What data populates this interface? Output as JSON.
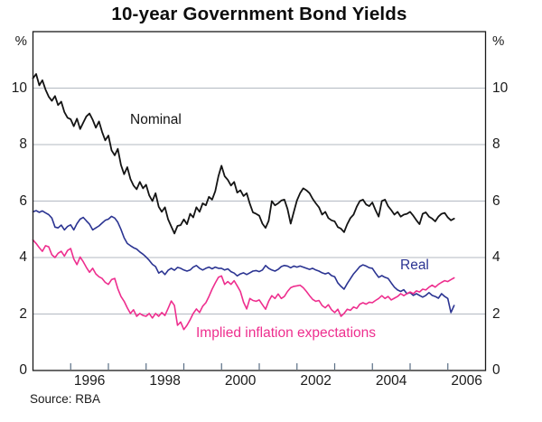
{
  "title": "10-year Government Bond Yields",
  "source_note": "Source: RBA",
  "axes": {
    "unit": "%",
    "y_ticks": [
      0,
      2,
      4,
      6,
      8,
      10
    ],
    "y_gridlines": [
      2,
      4,
      6,
      8,
      10
    ],
    "y_max": 12,
    "x_tick_years": [
      1996,
      1997,
      1998,
      1999,
      2000,
      2001,
      2002,
      2003,
      2004,
      2005,
      2006
    ],
    "x_labels": [
      1996,
      1998,
      2000,
      2002,
      2004,
      2006
    ],
    "x_min": 1995,
    "x_max": 2007,
    "grid_color": "#b3b9c2",
    "axis_color": "#1a1a1a",
    "tick_color": "#5a6f85"
  },
  "chart_data": {
    "type": "line",
    "title": "10-year Government Bond Yields",
    "xlabel": "",
    "ylabel": "%",
    "ylim": [
      0,
      12
    ],
    "xlim": [
      1995,
      2007
    ],
    "grid": true,
    "legend_position": "inline-annotations",
    "x_start": 1995.0,
    "x_step": 0.0833333,
    "series": [
      {
        "name": "Nominal",
        "color": "#141414",
        "width": 1.8,
        "values": [
          10.35,
          10.5,
          10.1,
          10.28,
          9.95,
          9.7,
          9.55,
          9.72,
          9.4,
          9.52,
          9.15,
          8.95,
          8.9,
          8.65,
          8.92,
          8.55,
          8.78,
          9.0,
          9.1,
          8.88,
          8.6,
          8.82,
          8.45,
          8.15,
          8.32,
          7.8,
          7.62,
          7.85,
          7.28,
          6.95,
          7.2,
          6.78,
          6.55,
          6.42,
          6.68,
          6.45,
          6.58,
          6.2,
          6.0,
          6.28,
          5.8,
          5.62,
          5.78,
          5.35,
          5.1,
          4.85,
          5.12,
          5.15,
          5.35,
          5.18,
          5.55,
          5.42,
          5.78,
          5.62,
          5.92,
          5.85,
          6.15,
          6.05,
          6.35,
          6.88,
          7.25,
          6.88,
          6.75,
          6.55,
          6.68,
          6.3,
          6.38,
          6.18,
          6.28,
          5.9,
          5.6,
          5.55,
          5.48,
          5.2,
          5.05,
          5.3,
          6.0,
          5.85,
          5.92,
          6.02,
          6.05,
          5.72,
          5.2,
          5.62,
          6.02,
          6.28,
          6.45,
          6.38,
          6.28,
          6.08,
          5.92,
          5.78,
          5.52,
          5.62,
          5.4,
          5.32,
          5.28,
          5.08,
          5.02,
          4.9,
          5.18,
          5.4,
          5.52,
          5.8,
          6.0,
          6.05,
          5.88,
          5.82,
          5.95,
          5.68,
          5.45,
          6.0,
          6.05,
          5.82,
          5.68,
          5.52,
          5.62,
          5.45,
          5.52,
          5.55,
          5.62,
          5.48,
          5.32,
          5.18,
          5.55,
          5.6,
          5.45,
          5.38,
          5.28,
          5.45,
          5.55,
          5.58,
          5.42,
          5.32,
          5.38
        ]
      },
      {
        "name": "Real",
        "color": "#2b3492",
        "width": 1.6,
        "values": [
          5.62,
          5.66,
          5.6,
          5.65,
          5.58,
          5.52,
          5.4,
          5.08,
          5.05,
          5.15,
          4.98,
          5.1,
          5.16,
          4.98,
          5.2,
          5.36,
          5.42,
          5.3,
          5.18,
          4.98,
          5.05,
          5.12,
          5.22,
          5.32,
          5.36,
          5.46,
          5.4,
          5.25,
          5.0,
          4.7,
          4.5,
          4.42,
          4.35,
          4.3,
          4.2,
          4.12,
          4.02,
          3.9,
          3.76,
          3.68,
          3.45,
          3.52,
          3.4,
          3.55,
          3.62,
          3.55,
          3.65,
          3.62,
          3.56,
          3.52,
          3.56,
          3.66,
          3.72,
          3.62,
          3.56,
          3.62,
          3.66,
          3.6,
          3.66,
          3.62,
          3.62,
          3.56,
          3.6,
          3.5,
          3.45,
          3.35,
          3.42,
          3.46,
          3.4,
          3.46,
          3.52,
          3.54,
          3.5,
          3.56,
          3.72,
          3.62,
          3.56,
          3.52,
          3.58,
          3.68,
          3.72,
          3.7,
          3.64,
          3.7,
          3.66,
          3.7,
          3.66,
          3.62,
          3.58,
          3.62,
          3.56,
          3.52,
          3.46,
          3.42,
          3.46,
          3.36,
          3.32,
          3.1,
          2.98,
          2.88,
          3.08,
          3.25,
          3.42,
          3.55,
          3.68,
          3.74,
          3.7,
          3.64,
          3.62,
          3.45,
          3.3,
          3.36,
          3.3,
          3.26,
          3.1,
          2.95,
          2.85,
          2.8,
          2.86,
          2.72,
          2.76,
          2.66,
          2.72,
          2.66,
          2.6,
          2.66,
          2.76,
          2.66,
          2.62,
          2.56,
          2.72,
          2.62,
          2.55,
          2.05,
          2.3
        ]
      },
      {
        "name": "Implied inflation expectations",
        "color": "#ee2e8e",
        "width": 1.6,
        "values": [
          4.62,
          4.5,
          4.35,
          4.22,
          4.42,
          4.38,
          4.1,
          4.0,
          4.15,
          4.22,
          4.05,
          4.25,
          4.32,
          3.95,
          3.75,
          4.02,
          3.85,
          3.65,
          3.48,
          3.62,
          3.42,
          3.32,
          3.26,
          3.12,
          3.05,
          3.22,
          3.26,
          2.9,
          2.62,
          2.45,
          2.22,
          2.02,
          2.15,
          1.92,
          2.02,
          1.95,
          1.92,
          2.02,
          1.86,
          2.02,
          1.92,
          2.05,
          1.95,
          2.2,
          2.46,
          2.3,
          1.6,
          1.72,
          1.45,
          1.6,
          1.8,
          2.02,
          2.18,
          2.05,
          2.28,
          2.4,
          2.62,
          2.88,
          3.1,
          3.3,
          3.35,
          3.05,
          3.15,
          3.05,
          3.18,
          3.0,
          2.8,
          2.42,
          2.18,
          2.55,
          2.48,
          2.45,
          2.5,
          2.33,
          2.17,
          2.45,
          2.65,
          2.55,
          2.71,
          2.55,
          2.62,
          2.8,
          2.93,
          2.98,
          3.0,
          3.02,
          2.93,
          2.8,
          2.65,
          2.52,
          2.45,
          2.48,
          2.3,
          2.22,
          2.33,
          2.15,
          2.05,
          2.17,
          1.92,
          2.02,
          2.17,
          2.13,
          2.25,
          2.2,
          2.35,
          2.4,
          2.35,
          2.42,
          2.4,
          2.48,
          2.55,
          2.65,
          2.55,
          2.62,
          2.5,
          2.56,
          2.62,
          2.72,
          2.65,
          2.72,
          2.78,
          2.72,
          2.82,
          2.78,
          2.88,
          2.85,
          2.95,
          3.02,
          2.95,
          3.05,
          3.12,
          3.18,
          3.15,
          3.22,
          3.28
        ]
      }
    ],
    "source": "RBA"
  }
}
